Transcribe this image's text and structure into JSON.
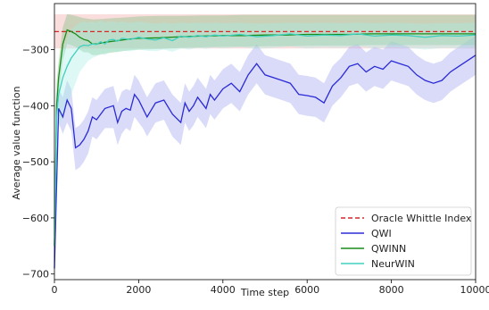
{
  "chart_data": {
    "type": "line",
    "title": "",
    "xlabel": "Time step",
    "ylabel": "Average value function",
    "xlim": [
      0,
      10000
    ],
    "ylim": [
      -710,
      -218
    ],
    "xticks": [
      0,
      2000,
      4000,
      6000,
      8000,
      10000
    ],
    "yticks": [
      -700,
      -600,
      -500,
      -400,
      -300
    ],
    "grid": false,
    "legend_position": "lower right",
    "oracle": {
      "name": "Oracle Whittle Index",
      "value": -268,
      "color": "#d62728",
      "band": [
        -237,
        -298
      ]
    },
    "series": [
      {
        "name": "QWI",
        "color": "#2b2bd6",
        "band_color": "#9fa6ef",
        "x": [
          0,
          100,
          200,
          300,
          400,
          500,
          600,
          700,
          800,
          900,
          1000,
          1200,
          1400,
          1500,
          1600,
          1700,
          1800,
          1900,
          2000,
          2100,
          2200,
          2400,
          2600,
          2800,
          3000,
          3100,
          3200,
          3300,
          3400,
          3500,
          3600,
          3700,
          3800,
          4000,
          4200,
          4400,
          4600,
          4800,
          5000,
          5200,
          5400,
          5600,
          5800,
          6000,
          6200,
          6400,
          6600,
          6800,
          7000,
          7200,
          7400,
          7600,
          7800,
          8000,
          8200,
          8400,
          8600,
          8800,
          9000,
          9200,
          9400,
          9600,
          9800,
          10000
        ],
        "y": [
          -690,
          -405,
          -420,
          -390,
          -405,
          -475,
          -470,
          -460,
          -445,
          -420,
          -425,
          -405,
          -400,
          -430,
          -410,
          -405,
          -408,
          -380,
          -390,
          -405,
          -420,
          -395,
          -390,
          -415,
          -430,
          -395,
          -410,
          -400,
          -385,
          -395,
          -405,
          -380,
          -390,
          -370,
          -360,
          -375,
          -345,
          -325,
          -345,
          -350,
          -355,
          -360,
          -380,
          -382,
          -385,
          -395,
          -365,
          -350,
          -330,
          -325,
          -340,
          -330,
          -335,
          -320,
          -325,
          -330,
          -345,
          -355,
          -360,
          -355,
          -340,
          -330,
          -320,
          -310
        ],
        "y_lower": [
          -700,
          -430,
          -450,
          -430,
          -445,
          -515,
          -510,
          -500,
          -485,
          -455,
          -460,
          -440,
          -440,
          -470,
          -450,
          -440,
          -445,
          -420,
          -430,
          -440,
          -455,
          -430,
          -425,
          -455,
          -470,
          -430,
          -445,
          -435,
          -420,
          -430,
          -440,
          -415,
          -425,
          -405,
          -395,
          -410,
          -380,
          -360,
          -380,
          -385,
          -390,
          -395,
          -415,
          -418,
          -420,
          -430,
          -400,
          -385,
          -365,
          -360,
          -375,
          -365,
          -370,
          -355,
          -360,
          -365,
          -380,
          -390,
          -395,
          -390,
          -375,
          -365,
          -355,
          -345
        ],
        "y_upper": [
          -650,
          -370,
          -385,
          -355,
          -370,
          -440,
          -435,
          -425,
          -410,
          -385,
          -390,
          -370,
          -365,
          -395,
          -375,
          -370,
          -373,
          -345,
          -355,
          -370,
          -385,
          -360,
          -355,
          -380,
          -395,
          -360,
          -375,
          -365,
          -350,
          -360,
          -370,
          -345,
          -355,
          -335,
          -325,
          -340,
          -310,
          -290,
          -310,
          -315,
          -320,
          -325,
          -345,
          -347,
          -350,
          -360,
          -330,
          -315,
          -295,
          -290,
          -305,
          -295,
          -300,
          -285,
          -290,
          -295,
          -310,
          -320,
          -325,
          -320,
          -305,
          -295,
          -285,
          -275
        ]
      },
      {
        "name": "QWINN",
        "color": "#1a8c1a",
        "band_color": "#7fbf7f",
        "x": [
          0,
          50,
          100,
          200,
          300,
          400,
          500,
          600,
          700,
          800,
          900,
          1000,
          1200,
          1400,
          1600,
          1800,
          2000,
          2500,
          3000,
          3500,
          4000,
          4500,
          5000,
          5500,
          6000,
          6500,
          7000,
          7500,
          8000,
          8500,
          9000,
          9500,
          10000
        ],
        "y": [
          -650,
          -400,
          -350,
          -290,
          -265,
          -268,
          -272,
          -278,
          -282,
          -284,
          -290,
          -290,
          -287,
          -285,
          -283,
          -281,
          -280,
          -279,
          -277,
          -276,
          -275,
          -275,
          -274,
          -274,
          -273,
          -273,
          -273,
          -272,
          -272,
          -272,
          -272,
          -272,
          -272
        ],
        "y_lower": [
          -690,
          -440,
          -380,
          -320,
          -290,
          -292,
          -295,
          -300,
          -305,
          -305,
          -310,
          -310,
          -307,
          -305,
          -303,
          -301,
          -300,
          -299,
          -297,
          -296,
          -295,
          -295,
          -294,
          -294,
          -293,
          -293,
          -293,
          -292,
          -292,
          -292,
          -292,
          -292,
          -292
        ],
        "y_upper": [
          -600,
          -360,
          -320,
          -260,
          -237,
          -238,
          -240,
          -242,
          -244,
          -245,
          -246,
          -246,
          -245,
          -244,
          -243,
          -242,
          -241,
          -240,
          -240,
          -239,
          -239,
          -238,
          -238,
          -238,
          -238,
          -238,
          -238,
          -238,
          -238,
          -238,
          -238,
          -238,
          -238
        ]
      },
      {
        "name": "NeurWIN",
        "color": "#40d0c0",
        "band_color": "#aaeee6",
        "x": [
          0,
          50,
          100,
          200,
          300,
          400,
          500,
          600,
          700,
          800,
          900,
          1000,
          1100,
          1200,
          1300,
          1400,
          1500,
          1600,
          1800,
          2000,
          2200,
          2400,
          2600,
          2800,
          3000,
          3200,
          3400,
          3600,
          3800,
          4000,
          4400,
          4800,
          5200,
          5600,
          6000,
          6400,
          6800,
          7200,
          7600,
          8000,
          8400,
          8800,
          9200,
          9600,
          10000
        ],
        "y": [
          -650,
          -420,
          -380,
          -350,
          -330,
          -315,
          -305,
          -295,
          -292,
          -293,
          -290,
          -291,
          -286,
          -290,
          -283,
          -282,
          -285,
          -280,
          -282,
          -278,
          -281,
          -283,
          -279,
          -284,
          -276,
          -278,
          -275,
          -277,
          -274,
          -276,
          -273,
          -277,
          -275,
          -272,
          -276,
          -274,
          -275,
          -272,
          -276,
          -274,
          -275,
          -278,
          -275,
          -276,
          -274
        ],
        "y_lower": [
          -690,
          -470,
          -440,
          -420,
          -400,
          -380,
          -360,
          -340,
          -330,
          -320,
          -315,
          -312,
          -308,
          -310,
          -305,
          -303,
          -305,
          -302,
          -303,
          -300,
          -302,
          -303,
          -300,
          -304,
          -298,
          -300,
          -297,
          -299,
          -296,
          -298,
          -295,
          -299,
          -297,
          -294,
          -298,
          -296,
          -297,
          -294,
          -298,
          -296,
          -297,
          -300,
          -297,
          -298,
          -296
        ],
        "y_upper": [
          -610,
          -380,
          -340,
          -300,
          -280,
          -265,
          -258,
          -252,
          -250,
          -252,
          -250,
          -252,
          -248,
          -252,
          -250,
          -250,
          -252,
          -250,
          -252,
          -250,
          -252,
          -254,
          -252,
          -254,
          -252,
          -253,
          -252,
          -253,
          -252,
          -253,
          -252,
          -254,
          -253,
          -252,
          -253,
          -252,
          -253,
          -252,
          -253,
          -252,
          -253,
          -254,
          -253,
          -253,
          -252
        ]
      }
    ]
  }
}
